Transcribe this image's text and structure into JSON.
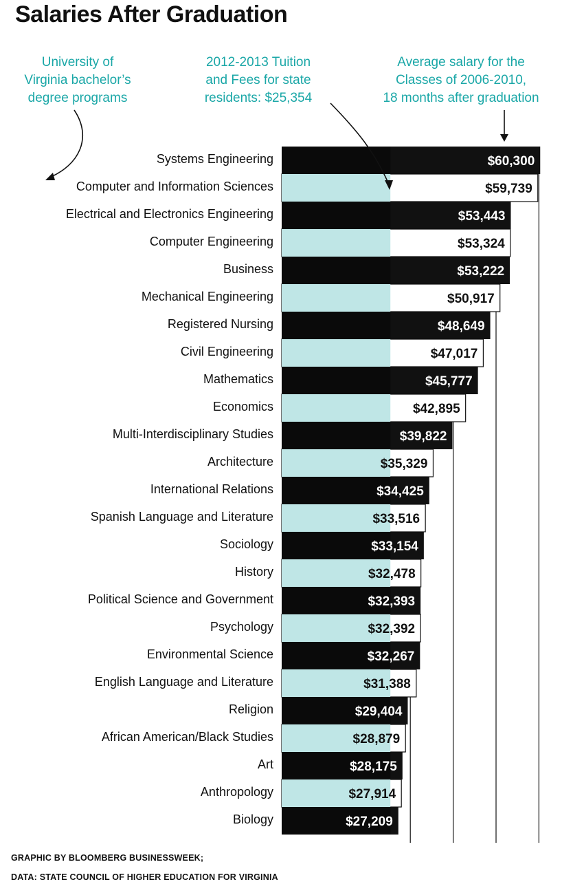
{
  "title": "Salaries After Graduation",
  "annotations": {
    "programs": [
      "University of",
      "Virginia bachelor’s",
      "degree programs"
    ],
    "tuition": [
      "2012-2013 Tuition",
      "and Fees for state",
      "residents: $25,354"
    ],
    "salary": [
      "Average salary for the",
      "Classes of 2006-2010,",
      "18 months after graduation"
    ]
  },
  "colors": {
    "accent": "#1aa7a7",
    "dark_bar": "#111111",
    "light_bar": "#ffffff",
    "tuition_dark": "#0a0a0a",
    "tuition_light": "#bfe6e6"
  },
  "chart_data": {
    "type": "bar",
    "orientation": "horizontal",
    "tuition_reference": 25354,
    "categories": [
      "Systems Engineering",
      "Computer and Information Sciences",
      "Electrical and Electronics Engineering",
      "Computer Engineering",
      "Business",
      "Mechanical Engineering",
      "Registered Nursing",
      "Civil Engineering",
      "Mathematics",
      "Economics",
      "Multi-Interdisciplinary Studies",
      "Architecture",
      "International Relations",
      "Spanish Language and Literature",
      "Sociology",
      "History",
      "Political Science and Government",
      "Psychology",
      "Environmental Science",
      "English Language and Literature",
      "Religion",
      "African American/Black Studies",
      "Art",
      "Anthropology",
      "Biology"
    ],
    "values": [
      60300,
      59739,
      53443,
      53324,
      53222,
      50917,
      48649,
      47017,
      45777,
      42895,
      39822,
      35329,
      34425,
      33516,
      33154,
      32478,
      32393,
      32392,
      32267,
      31388,
      29404,
      28879,
      28175,
      27914,
      27209
    ],
    "value_labels": [
      "$60,300",
      "$59,739",
      "$53,443",
      "$53,324",
      "$53,222",
      "$50,917",
      "$48,649",
      "$47,017",
      "$45,777",
      "$42,895",
      "$39,822",
      "$35,329",
      "$34,425",
      "$33,516",
      "$33,154",
      "$32,478",
      "$32,393",
      "$32,392",
      "$32,267",
      "$31,388",
      "$29,404",
      "$28,879",
      "$28,175",
      "$27,914",
      "$27,209"
    ],
    "xlim": [
      0,
      62000
    ],
    "grid": true,
    "xlabel": "",
    "ylabel": ""
  },
  "footer": {
    "credit": "GRAPHIC BY BLOOMBERG BUSINESSWEEK;",
    "source": "DATA: STATE COUNCIL OF HIGHER EDUCATION FOR VIRGINIA"
  }
}
